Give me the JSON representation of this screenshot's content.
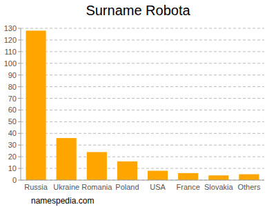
{
  "chart_data": {
    "type": "bar",
    "title": "Surname Robota",
    "categories": [
      "Russia",
      "Ukraine",
      "Romania",
      "Poland",
      "USA",
      "France",
      "Slovakia",
      "Others"
    ],
    "values": [
      128,
      36,
      24,
      16,
      8,
      6,
      4,
      5
    ],
    "color": "#ffa500",
    "ylim": [
      0,
      130
    ],
    "yticks": [
      0,
      10,
      20,
      30,
      40,
      50,
      60,
      70,
      80,
      90,
      100,
      110,
      120,
      130
    ],
    "grid": true,
    "source": "namespedia.com"
  }
}
